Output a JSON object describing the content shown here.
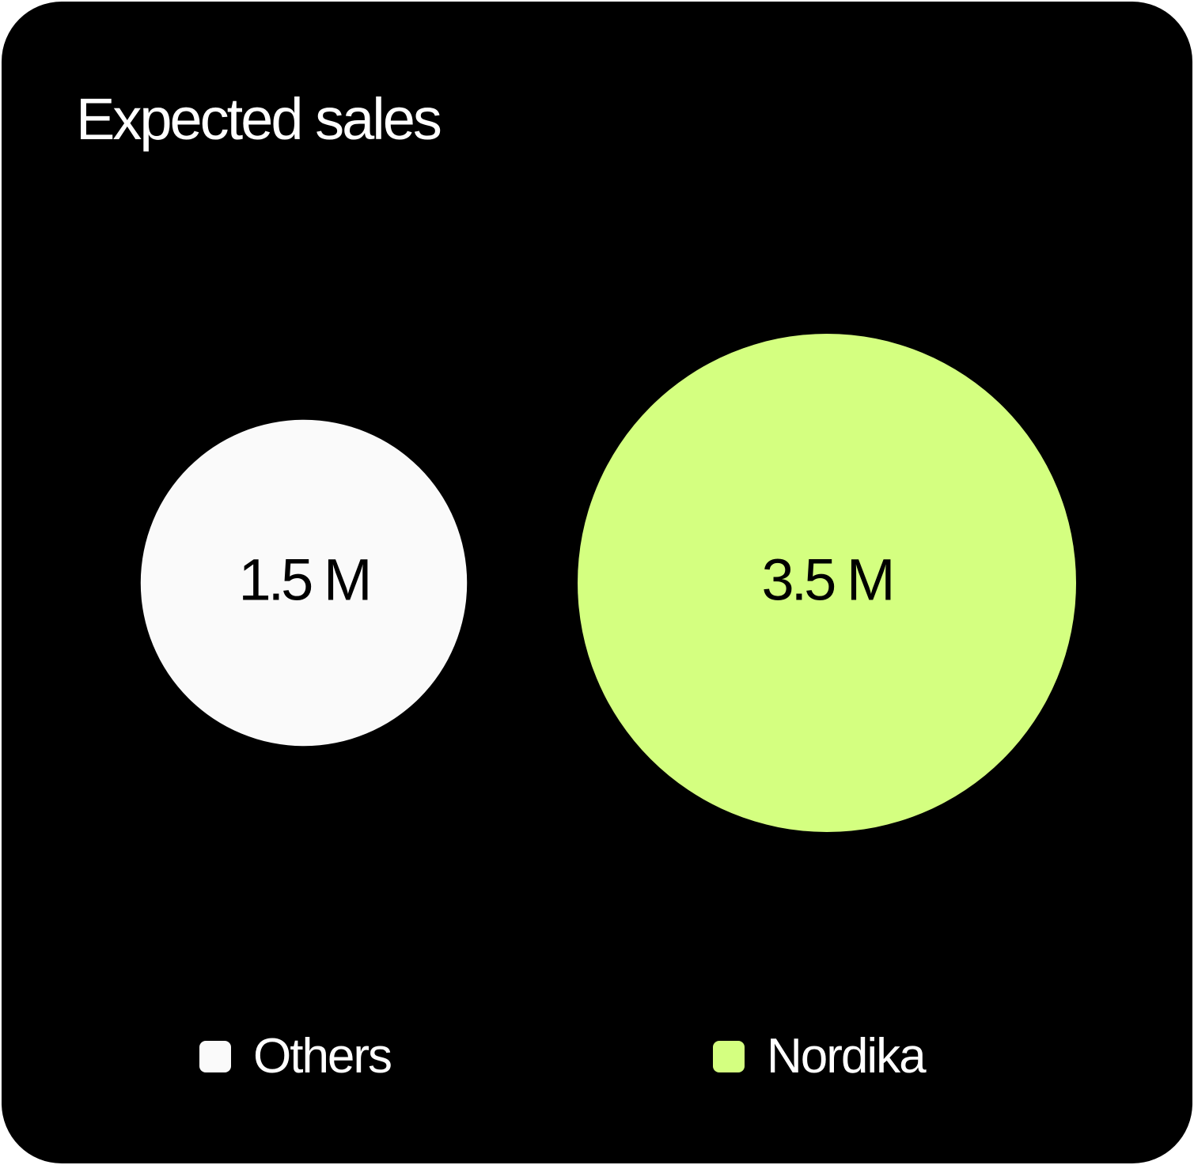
{
  "chart_data": {
    "type": "bubble",
    "title": "Expected sales",
    "categories": [
      "Others",
      "Nordika"
    ],
    "values": [
      1.5,
      3.5
    ],
    "unit": "M",
    "labels": [
      "1.5 M",
      "3.5 M"
    ],
    "colors": [
      "#fafafa",
      "#d4ff80"
    ],
    "background": "#000000",
    "legend": {
      "position": "bottom",
      "entries": [
        {
          "label": "Others",
          "color": "#fafafa"
        },
        {
          "label": "Nordika",
          "color": "#d4ff80"
        }
      ]
    }
  }
}
